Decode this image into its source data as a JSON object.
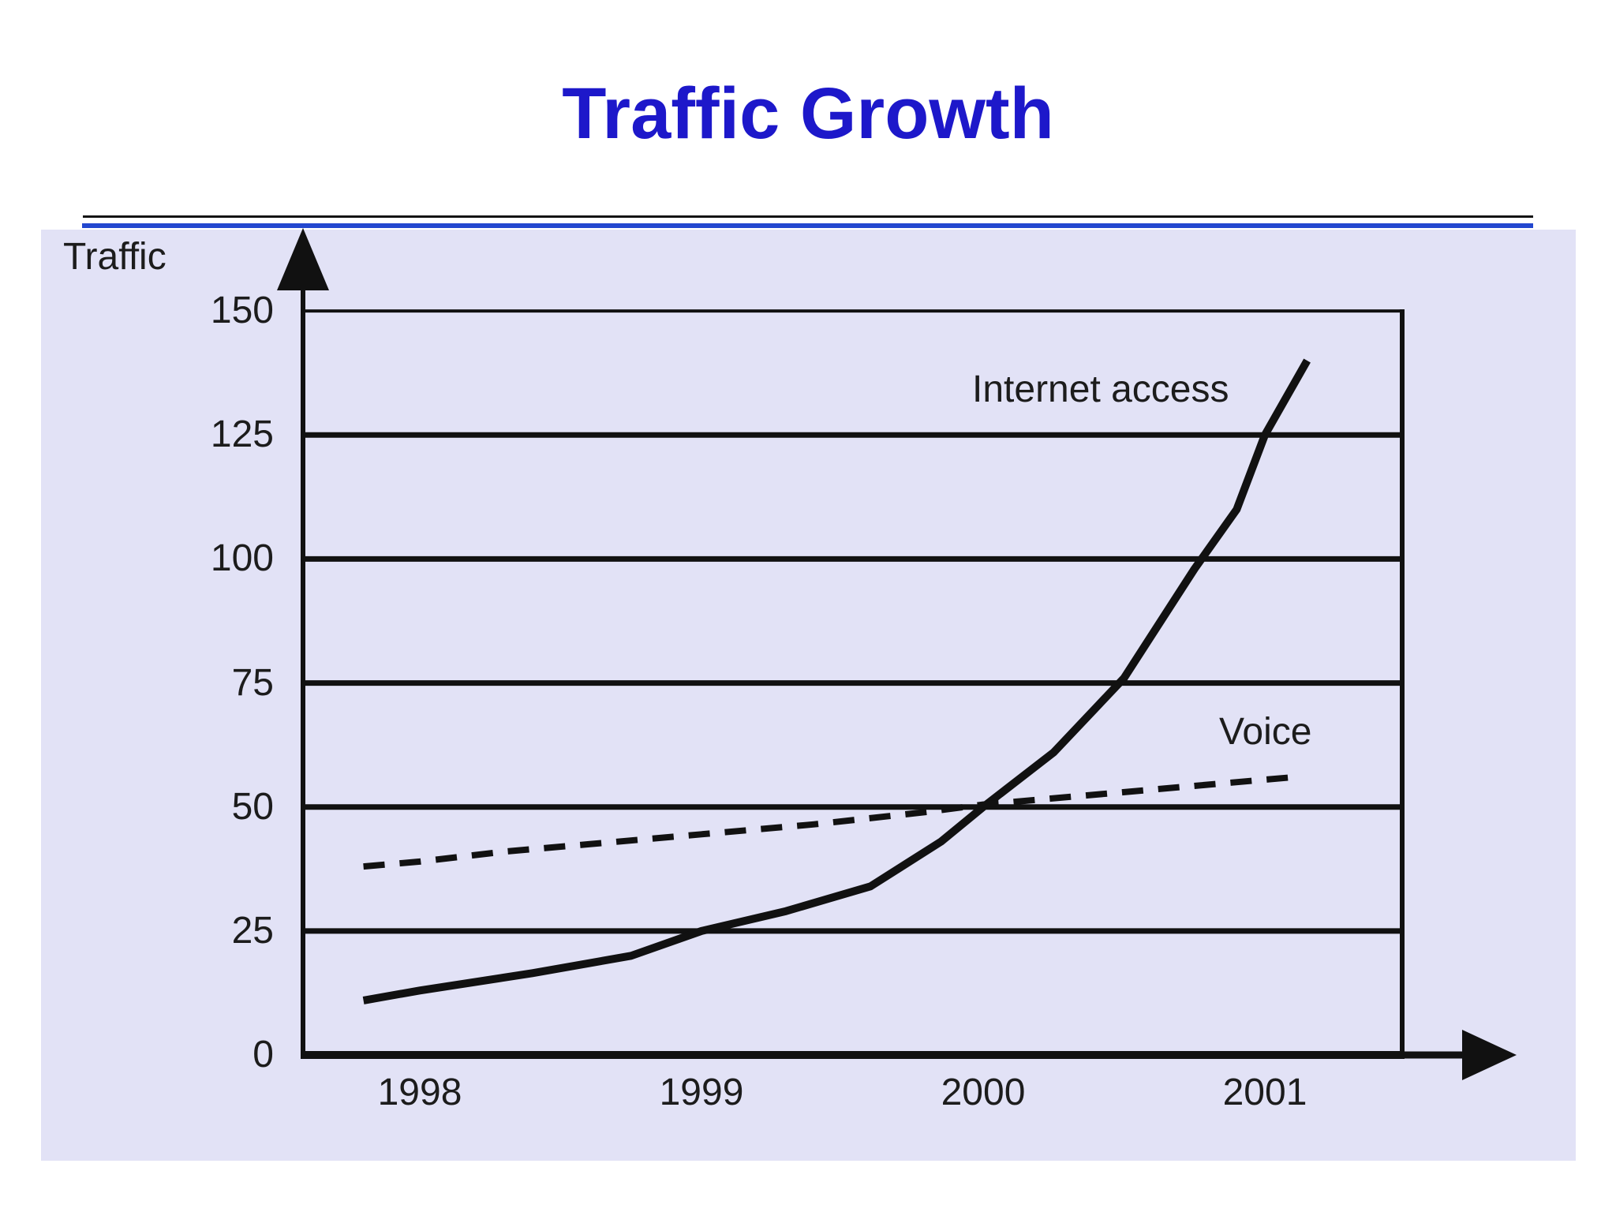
{
  "slide": {
    "title": "Traffic Growth"
  },
  "chart_data": {
    "type": "line",
    "title": "Traffic Growth",
    "ylabel": "Traffic",
    "xlabel": "",
    "x_ticks": [
      "1998",
      "1999",
      "2000",
      "2001"
    ],
    "y_ticks": [
      0,
      25,
      50,
      75,
      100,
      125,
      150
    ],
    "ylim": [
      0,
      157
    ],
    "xlim": [
      1997.6,
      2001.55
    ],
    "grid": "horizontal",
    "legend_position": "inline-annotations",
    "series": [
      {
        "name": "Internet access",
        "style": "solid",
        "color": "#111111",
        "points": [
          [
            1997.8,
            11
          ],
          [
            1998.0,
            13
          ],
          [
            1998.4,
            16.5
          ],
          [
            1998.75,
            20
          ],
          [
            1999.0,
            25
          ],
          [
            1999.3,
            29
          ],
          [
            1999.6,
            34
          ],
          [
            1999.85,
            43
          ],
          [
            2000.0,
            50
          ],
          [
            2000.25,
            61
          ],
          [
            2000.5,
            76
          ],
          [
            2000.75,
            98
          ],
          [
            2000.9,
            110
          ],
          [
            2001.0,
            125
          ],
          [
            2001.15,
            140
          ]
        ]
      },
      {
        "name": "Voice",
        "style": "dashed",
        "color": "#111111",
        "points": [
          [
            1997.8,
            38
          ],
          [
            1998.0,
            39
          ],
          [
            1998.3,
            41
          ],
          [
            1998.6,
            42.5
          ],
          [
            1999.0,
            44.5
          ],
          [
            1999.4,
            46.5
          ],
          [
            1999.8,
            49
          ],
          [
            2000.0,
            50.5
          ],
          [
            2000.4,
            52.5
          ],
          [
            2000.8,
            54.5
          ],
          [
            2001.0,
            55.5
          ],
          [
            2001.1,
            56
          ]
        ]
      }
    ]
  },
  "colors": {
    "title_blue": "#1d18ca",
    "separator_blue": "#2347cf",
    "panel_background": "#e2e2f6",
    "line_color": "#111111",
    "label_color": "#1c1c1c"
  }
}
